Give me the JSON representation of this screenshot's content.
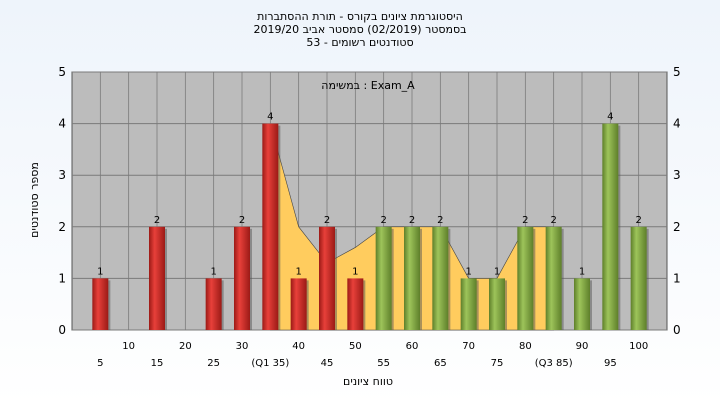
{
  "chart_data": {
    "type": "bar",
    "title_lines": [
      "היסטוגרמת ציונים בקורס - תורת ההסתברות",
      "בסמסטר  (02/2019)  סמסטר אביב 2019/20",
      "סטודנטים רשומים - 53"
    ],
    "annotation": "במשימה : Exam_A",
    "xlabel": "טווח ציונים",
    "ylabel": "מספר סטודנטים",
    "ylim": [
      0,
      5
    ],
    "yticks": [
      0,
      1,
      2,
      3,
      4,
      5
    ],
    "grid": true,
    "x": [
      5,
      15,
      25,
      30,
      35,
      40,
      45,
      50,
      55,
      60,
      65,
      70,
      75,
      80,
      85,
      90,
      95,
      100
    ],
    "values": [
      1,
      2,
      1,
      2,
      4,
      1,
      2,
      1,
      2,
      2,
      2,
      1,
      1,
      2,
      2,
      1,
      4,
      2
    ],
    "bar_colors": [
      "red",
      "red",
      "red",
      "red",
      "red",
      "red",
      "red",
      "red",
      "green",
      "green",
      "green",
      "green",
      "green",
      "green",
      "green",
      "green",
      "green",
      "green"
    ],
    "x_tick_labels": [
      {
        "x": 5,
        "text": "5",
        "row": 1
      },
      {
        "x": 10,
        "text": "10",
        "row": 0
      },
      {
        "x": 15,
        "text": "15",
        "row": 1
      },
      {
        "x": 20,
        "text": "20",
        "row": 0
      },
      {
        "x": 25,
        "text": "25",
        "row": 1
      },
      {
        "x": 30,
        "text": "30",
        "row": 0
      },
      {
        "x": 35,
        "text": "(Q1 35)",
        "row": 1
      },
      {
        "x": 40,
        "text": "40",
        "row": 0
      },
      {
        "x": 45,
        "text": "45",
        "row": 1
      },
      {
        "x": 50,
        "text": "50",
        "row": 0
      },
      {
        "x": 55,
        "text": "55",
        "row": 1
      },
      {
        "x": 60,
        "text": "60",
        "row": 0
      },
      {
        "x": 65,
        "text": "65",
        "row": 1
      },
      {
        "x": 70,
        "text": "70",
        "row": 0
      },
      {
        "x": 75,
        "text": "75",
        "row": 1
      },
      {
        "x": 80,
        "text": "80",
        "row": 0
      },
      {
        "x": 85,
        "text": "(Q3 85)",
        "row": 1
      },
      {
        "x": 90,
        "text": "90",
        "row": 0
      },
      {
        "x": 95,
        "text": "95",
        "row": 1
      },
      {
        "x": 100,
        "text": "100",
        "row": 0
      }
    ],
    "area_x": [
      35,
      40,
      45,
      50,
      55,
      60,
      65,
      70,
      75,
      80,
      85
    ],
    "area_y": [
      4,
      2,
      1.3,
      1.6,
      2,
      2,
      2,
      1,
      1,
      2,
      2
    ]
  },
  "colors": {
    "plot_bg": "#bcbcbc",
    "bar_red": "#e8403a",
    "bar_red_dark": "#9b1a16",
    "bar_green": "#9dc45a",
    "bar_green_dark": "#5e7f2a",
    "area": "#ffcc5e",
    "grid": "#7a7a7a"
  }
}
